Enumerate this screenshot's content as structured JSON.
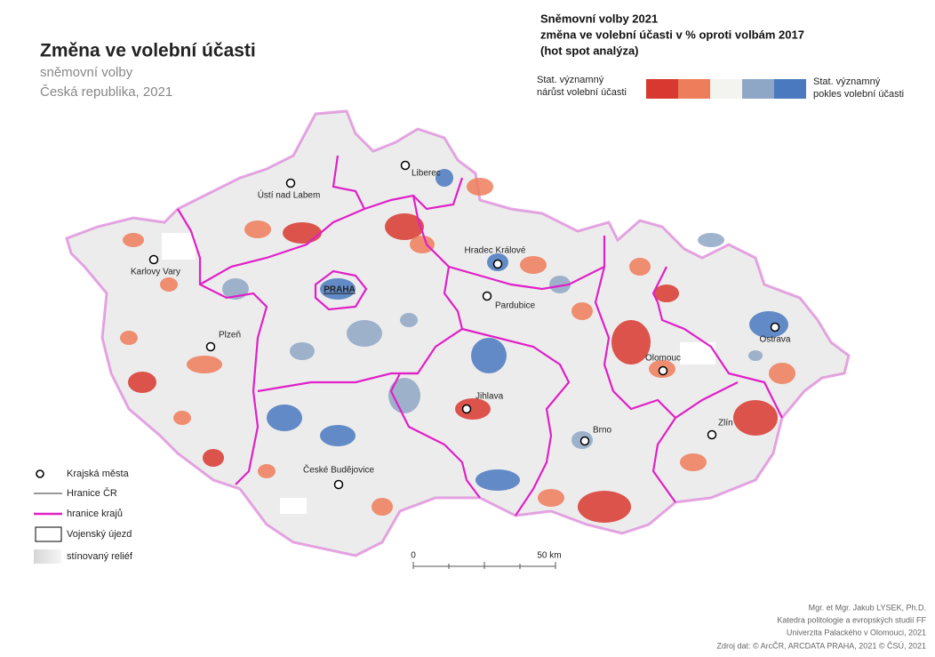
{
  "header": {
    "title": "Změna ve volební účasti",
    "subtitle": [
      "sněmovní volby",
      "Česká republika, 2021"
    ]
  },
  "legend": {
    "title": [
      "Sněmovní volby 2021",
      "změna ve volební účasti v % oproti volbám 2017",
      "(hot spot analýza)"
    ],
    "left_label": [
      "Stat. významný",
      "nárůst volební účasti"
    ],
    "right_label": [
      "Stat. významný",
      "pokles volební účasti"
    ],
    "colors": [
      "#d8382f",
      "#ee7d5b",
      "#f3f3ef",
      "#8fa7c6",
      "#4a79bf"
    ]
  },
  "cities": [
    "Liberec",
    "Ústí nad Labem",
    "Karlovy Vary",
    "Hradec Králové",
    "PRAHA",
    "Pardubice",
    "Plzeň",
    "Ostrava",
    "Olomouc",
    "Jihlava",
    "Zlín",
    "Brno",
    "České Budějovice"
  ],
  "map_legend": [
    "Krajská města",
    "Hranice ČR",
    "hranice krajů",
    "Vojenský újezd",
    "stínovaný reliéf"
  ],
  "scale_bar": [
    "0",
    "50 km"
  ],
  "credits": [
    "Mgr. et Mgr. Jakub LYSEK, Ph.D.",
    "Katedra politologie a evropských studií FF",
    "Univerzita Palackého v Olomouci, 2021",
    "Zdroj dat: © ArcČR, ARCDATA PRAHA, 2021  © ČSÚ, 2021"
  ]
}
